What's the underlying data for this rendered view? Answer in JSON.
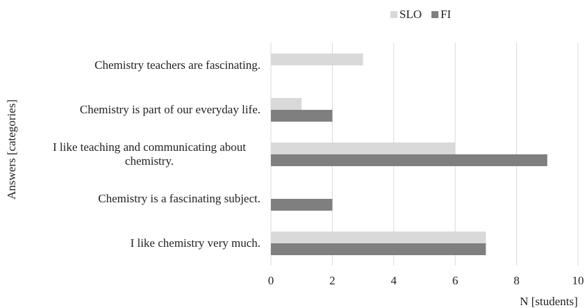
{
  "chart_data": {
    "type": "barh",
    "categories": [
      "Chemistry teachers are fascinating.",
      "Chemistry is part of our everyday life.",
      "I like teaching and communicating about chemistry.",
      "Chemistry is a fascinating subject.",
      "I like chemistry very much."
    ],
    "series": [
      {
        "name": "SLO",
        "color": "#d9d9d9",
        "values": [
          3,
          1,
          6,
          0,
          7
        ]
      },
      {
        "name": "FI",
        "color": "#7f7f7f",
        "values": [
          0,
          2,
          9,
          2,
          7
        ]
      }
    ],
    "xlim": [
      0,
      10
    ],
    "xticks": [
      0,
      2,
      4,
      6,
      8,
      10
    ],
    "x_label": "N [students]",
    "y_label": "Answers [categories]",
    "grid": true,
    "legend": "top"
  }
}
